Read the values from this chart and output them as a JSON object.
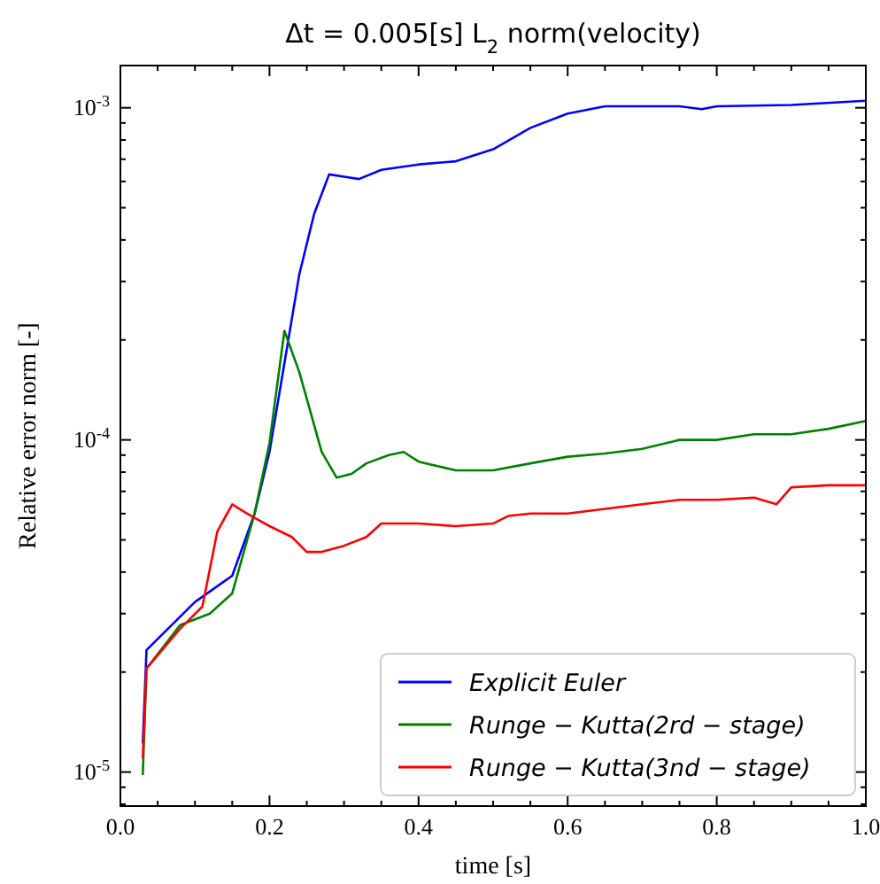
{
  "chart_data": {
    "type": "line",
    "title": "Δt = 0.005[s] L$_{2}$ norm(velocity)",
    "xlabel": "time [s]",
    "ylabel": "Relative error norm [-]",
    "log": "y",
    "grid": false,
    "legend": "bottom right",
    "line_style": "solid",
    "marker": "none",
    "xlim": [
      0,
      1
    ],
    "ylim": [
      7.9e-06,
      0.00134
    ],
    "xticks": [
      {
        "value": 0,
        "label": "0.0"
      },
      {
        "value": 0.05,
        "label": null
      },
      {
        "value": 0.1,
        "label": null
      },
      {
        "value": 0.15,
        "label": null
      },
      {
        "value": 0.2,
        "label": "0.2"
      },
      {
        "value": 0.25,
        "label": null
      },
      {
        "value": 0.3,
        "label": null
      },
      {
        "value": 0.35,
        "label": null
      },
      {
        "value": 0.4,
        "label": "0.4"
      },
      {
        "value": 0.45,
        "label": null
      },
      {
        "value": 0.5,
        "label": null
      },
      {
        "value": 0.55,
        "label": null
      },
      {
        "value": 0.6,
        "label": "0.6"
      },
      {
        "value": 0.65,
        "label": null
      },
      {
        "value": 0.7,
        "label": null
      },
      {
        "value": 0.75,
        "label": null
      },
      {
        "value": 0.8,
        "label": "0.8"
      },
      {
        "value": 0.85,
        "label": null
      },
      {
        "value": 0.9,
        "label": null
      },
      {
        "value": 0.95,
        "label": null
      },
      {
        "value": 1,
        "label": "1.0"
      }
    ],
    "yticks": [
      {
        "value": 8e-06,
        "label": null
      },
      {
        "value": 9e-06,
        "label": null
      },
      {
        "value": 1e-05,
        "label": "10$^{-5}$"
      },
      {
        "value": 2e-05,
        "label": null
      },
      {
        "value": 3e-05,
        "label": null
      },
      {
        "value": 4e-05,
        "label": null
      },
      {
        "value": 5e-05,
        "label": null
      },
      {
        "value": 6e-05,
        "label": null
      },
      {
        "value": 7e-05,
        "label": null
      },
      {
        "value": 8e-05,
        "label": null
      },
      {
        "value": 9e-05,
        "label": null
      },
      {
        "value": 0.0001,
        "label": "10$^{-4}$"
      },
      {
        "value": 0.0002,
        "label": null
      },
      {
        "value": 0.0003,
        "label": null
      },
      {
        "value": 0.0004,
        "label": null
      },
      {
        "value": 0.0005,
        "label": null
      },
      {
        "value": 0.0006,
        "label": null
      },
      {
        "value": 0.0007,
        "label": null
      },
      {
        "value": 0.0008,
        "label": null
      },
      {
        "value": 0.0009,
        "label": null
      },
      {
        "value": 0.001,
        "label": "10$^{-3}$"
      }
    ],
    "series": [
      {
        "name": "Explicit Euler",
        "color": "#0000ff",
        "x": [
          0.03,
          0.035,
          0.1,
          0.15,
          0.18,
          0.2,
          0.22,
          0.24,
          0.26,
          0.28,
          0.3,
          0.32,
          0.35,
          0.4,
          0.45,
          0.5,
          0.55,
          0.6,
          0.65,
          0.7,
          0.75,
          0.78,
          0.8,
          0.9,
          1.0
        ],
        "values": [
          1.22e-05,
          2.33e-05,
          3.25e-05,
          3.9e-05,
          6e-05,
          9.2e-05,
          0.00017,
          0.000315,
          0.00048,
          0.00063,
          0.00062,
          0.00061,
          0.00065,
          0.000675,
          0.00069,
          0.00075,
          0.00087,
          0.00096,
          0.00101,
          0.00101,
          0.00101,
          0.00099,
          0.00101,
          0.00102,
          0.00105
        ]
      },
      {
        "name": "Runge − Kutta(2rd − stage)",
        "color": "#008000",
        "x": [
          0.03,
          0.035,
          0.08,
          0.12,
          0.15,
          0.18,
          0.2,
          0.22,
          0.24,
          0.25,
          0.27,
          0.29,
          0.31,
          0.33,
          0.36,
          0.38,
          0.4,
          0.45,
          0.5,
          0.55,
          0.6,
          0.65,
          0.7,
          0.75,
          0.8,
          0.85,
          0.9,
          0.95,
          1.0
        ],
        "values": [
          9.8e-06,
          2.05e-05,
          2.77e-05,
          3e-05,
          3.45e-05,
          6e-05,
          9.8e-05,
          0.000213,
          0.00016,
          0.000133,
          9.2e-05,
          7.7e-05,
          7.9e-05,
          8.5e-05,
          9e-05,
          9.2e-05,
          8.6e-05,
          8.1e-05,
          8.1e-05,
          8.5e-05,
          8.9e-05,
          9.1e-05,
          9.4e-05,
          0.0001,
          0.0001,
          0.000104,
          0.000104,
          0.000108,
          0.000114
        ]
      },
      {
        "name": "Runge − Kutta(3nd − stage)",
        "color": "#ff0000",
        "x": [
          0.03,
          0.035,
          0.08,
          0.11,
          0.13,
          0.15,
          0.17,
          0.2,
          0.23,
          0.25,
          0.27,
          0.3,
          0.33,
          0.35,
          0.4,
          0.45,
          0.5,
          0.52,
          0.55,
          0.6,
          0.65,
          0.7,
          0.75,
          0.8,
          0.85,
          0.88,
          0.9,
          0.95,
          1.0
        ],
        "values": [
          1.1e-05,
          2.05e-05,
          2.7e-05,
          3.15e-05,
          5.3e-05,
          6.4e-05,
          6e-05,
          5.5e-05,
          5.1e-05,
          4.6e-05,
          4.6e-05,
          4.8e-05,
          5.1e-05,
          5.6e-05,
          5.6e-05,
          5.5e-05,
          5.6e-05,
          5.9e-05,
          6e-05,
          6e-05,
          6.2e-05,
          6.4e-05,
          6.6e-05,
          6.6e-05,
          6.7e-05,
          6.4e-05,
          7.2e-05,
          7.3e-05,
          7.3e-05
        ]
      }
    ]
  }
}
